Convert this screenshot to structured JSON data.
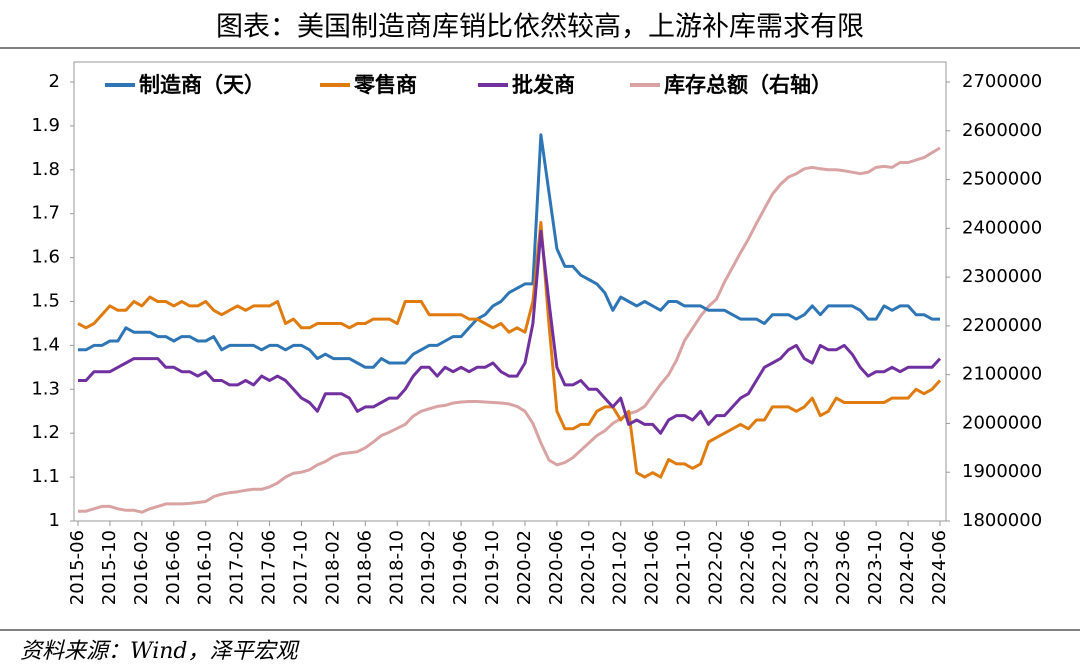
{
  "chart_data": {
    "type": "line",
    "title": "图表：美国制造商库销比依然较高，上游补库需求有限",
    "source": "资料来源：Wind，泽平宏观",
    "categories": [
      "2015-06",
      null,
      null,
      null,
      "2015-10",
      null,
      null,
      null,
      "2016-02",
      null,
      null,
      null,
      "2016-06",
      null,
      null,
      null,
      "2016-10",
      null,
      null,
      null,
      "2017-02",
      null,
      null,
      null,
      "2017-06",
      null,
      null,
      null,
      "2017-10",
      null,
      null,
      null,
      "2018-02",
      null,
      null,
      null,
      "2018-06",
      null,
      null,
      null,
      "2018-10",
      null,
      null,
      null,
      "2019-02",
      null,
      null,
      null,
      "2019-06",
      null,
      null,
      null,
      "2019-10",
      null,
      null,
      null,
      "2020-02",
      null,
      null,
      null,
      "2020-06",
      null,
      null,
      null,
      "2020-10",
      null,
      null,
      null,
      "2021-02",
      null,
      null,
      null,
      "2021-06",
      null,
      null,
      null,
      "2021-10",
      null,
      null,
      null,
      "2022-02",
      null,
      null,
      null,
      "2022-06",
      null,
      null,
      null,
      "2022-10",
      null,
      null,
      null,
      "2023-02",
      null,
      null,
      null,
      "2023-06",
      null,
      null,
      null,
      "2023-10",
      null,
      null,
      null,
      "2024-02",
      null,
      null,
      null,
      "2024-06"
    ],
    "series": [
      {
        "name": "制造商（天）",
        "color": "#2E75B6",
        "values": [
          1.39,
          1.39,
          1.4,
          1.4,
          1.41,
          1.41,
          1.44,
          1.43,
          1.43,
          1.43,
          1.42,
          1.42,
          1.41,
          1.42,
          1.42,
          1.41,
          1.41,
          1.42,
          1.39,
          1.4,
          1.4,
          1.4,
          1.4,
          1.39,
          1.4,
          1.4,
          1.39,
          1.4,
          1.4,
          1.39,
          1.37,
          1.38,
          1.37,
          1.37,
          1.37,
          1.36,
          1.35,
          1.35,
          1.37,
          1.36,
          1.36,
          1.36,
          1.38,
          1.39,
          1.4,
          1.4,
          1.41,
          1.42,
          1.42,
          1.44,
          1.46,
          1.47,
          1.49,
          1.5,
          1.52,
          1.53,
          1.54,
          1.54,
          1.88,
          1.75,
          1.62,
          1.58,
          1.58,
          1.56,
          1.55,
          1.54,
          1.52,
          1.48,
          1.51,
          1.5,
          1.49,
          1.5,
          1.49,
          1.48,
          1.5,
          1.5,
          1.49,
          1.49,
          1.49,
          1.48,
          1.48,
          1.48,
          1.47,
          1.46,
          1.46,
          1.46,
          1.45,
          1.47,
          1.47,
          1.47,
          1.46,
          1.47,
          1.49,
          1.47,
          1.49,
          1.49,
          1.49,
          1.49,
          1.48,
          1.46,
          1.46,
          1.49,
          1.48,
          1.49,
          1.49,
          1.47,
          1.47,
          1.46,
          1.46
        ]
      },
      {
        "name": "零售商",
        "color": "#E07B10",
        "values": [
          1.45,
          1.44,
          1.45,
          1.47,
          1.49,
          1.48,
          1.48,
          1.5,
          1.49,
          1.51,
          1.5,
          1.5,
          1.49,
          1.5,
          1.49,
          1.49,
          1.5,
          1.48,
          1.47,
          1.48,
          1.49,
          1.48,
          1.49,
          1.49,
          1.49,
          1.5,
          1.45,
          1.46,
          1.44,
          1.44,
          1.45,
          1.45,
          1.45,
          1.45,
          1.44,
          1.45,
          1.45,
          1.46,
          1.46,
          1.46,
          1.45,
          1.5,
          1.5,
          1.5,
          1.47,
          1.47,
          1.47,
          1.47,
          1.47,
          1.46,
          1.46,
          1.45,
          1.44,
          1.45,
          1.43,
          1.44,
          1.43,
          1.5,
          1.68,
          1.45,
          1.25,
          1.21,
          1.21,
          1.22,
          1.22,
          1.25,
          1.26,
          1.26,
          1.23,
          1.25,
          1.11,
          1.1,
          1.11,
          1.1,
          1.14,
          1.13,
          1.13,
          1.12,
          1.13,
          1.18,
          1.19,
          1.2,
          1.21,
          1.22,
          1.21,
          1.23,
          1.23,
          1.26,
          1.26,
          1.26,
          1.25,
          1.26,
          1.28,
          1.24,
          1.25,
          1.28,
          1.27,
          1.27,
          1.27,
          1.27,
          1.27,
          1.27,
          1.28,
          1.28,
          1.28,
          1.3,
          1.29,
          1.3,
          1.32
        ]
      },
      {
        "name": "批发商",
        "color": "#7030A0",
        "values": [
          1.32,
          1.32,
          1.34,
          1.34,
          1.34,
          1.35,
          1.36,
          1.37,
          1.37,
          1.37,
          1.37,
          1.35,
          1.35,
          1.34,
          1.34,
          1.33,
          1.34,
          1.32,
          1.32,
          1.31,
          1.31,
          1.32,
          1.31,
          1.33,
          1.32,
          1.33,
          1.32,
          1.3,
          1.28,
          1.27,
          1.25,
          1.29,
          1.29,
          1.29,
          1.28,
          1.25,
          1.26,
          1.26,
          1.27,
          1.28,
          1.28,
          1.3,
          1.33,
          1.35,
          1.35,
          1.33,
          1.35,
          1.34,
          1.35,
          1.34,
          1.35,
          1.35,
          1.36,
          1.34,
          1.33,
          1.33,
          1.36,
          1.45,
          1.66,
          1.5,
          1.35,
          1.31,
          1.31,
          1.32,
          1.3,
          1.3,
          1.28,
          1.26,
          1.28,
          1.22,
          1.23,
          1.22,
          1.22,
          1.2,
          1.23,
          1.24,
          1.24,
          1.23,
          1.25,
          1.22,
          1.24,
          1.24,
          1.26,
          1.28,
          1.29,
          1.32,
          1.35,
          1.36,
          1.37,
          1.39,
          1.4,
          1.37,
          1.36,
          1.4,
          1.39,
          1.39,
          1.4,
          1.38,
          1.35,
          1.33,
          1.34,
          1.34,
          1.35,
          1.34,
          1.35,
          1.35,
          1.35,
          1.35,
          1.37
        ]
      },
      {
        "name": "库存总额（右轴）",
        "color": "#D9A3A3",
        "axis": "y2",
        "values": [
          1820000,
          1820000,
          1825000,
          1830000,
          1830000,
          1825000,
          1822000,
          1822000,
          1818000,
          1825000,
          1830000,
          1835000,
          1835000,
          1835000,
          1836000,
          1838000,
          1840000,
          1850000,
          1855000,
          1858000,
          1860000,
          1863000,
          1865000,
          1865000,
          1870000,
          1878000,
          1890000,
          1898000,
          1900000,
          1905000,
          1915000,
          1922000,
          1932000,
          1938000,
          1940000,
          1942000,
          1950000,
          1962000,
          1975000,
          1982000,
          1990000,
          1998000,
          2015000,
          2025000,
          2030000,
          2035000,
          2037000,
          2042000,
          2044000,
          2045000,
          2045000,
          2044000,
          2043000,
          2042000,
          2040000,
          2035000,
          2025000,
          2000000,
          1960000,
          1925000,
          1915000,
          1920000,
          1930000,
          1945000,
          1960000,
          1975000,
          1985000,
          2000000,
          2010000,
          2020000,
          2025000,
          2035000,
          2058000,
          2080000,
          2100000,
          2130000,
          2170000,
          2195000,
          2220000,
          2240000,
          2255000,
          2290000,
          2320000,
          2350000,
          2378000,
          2410000,
          2440000,
          2470000,
          2490000,
          2505000,
          2512000,
          2522000,
          2525000,
          2522000,
          2520000,
          2520000,
          2518000,
          2515000,
          2512000,
          2515000,
          2525000,
          2527000,
          2525000,
          2535000,
          2535000,
          2540000,
          2545000,
          2555000,
          2565000
        ]
      }
    ],
    "ylim": [
      1,
      2
    ],
    "yticks": [
      1,
      1.1,
      1.2,
      1.3,
      1.4,
      1.5,
      1.6,
      1.7,
      1.8,
      1.9,
      2
    ],
    "y2lim": [
      1800000,
      2700000
    ],
    "y2ticks": [
      1800000,
      1900000,
      2000000,
      2100000,
      2200000,
      2300000,
      2400000,
      2500000,
      2600000,
      2700000
    ],
    "grid": false,
    "legend": "top"
  }
}
